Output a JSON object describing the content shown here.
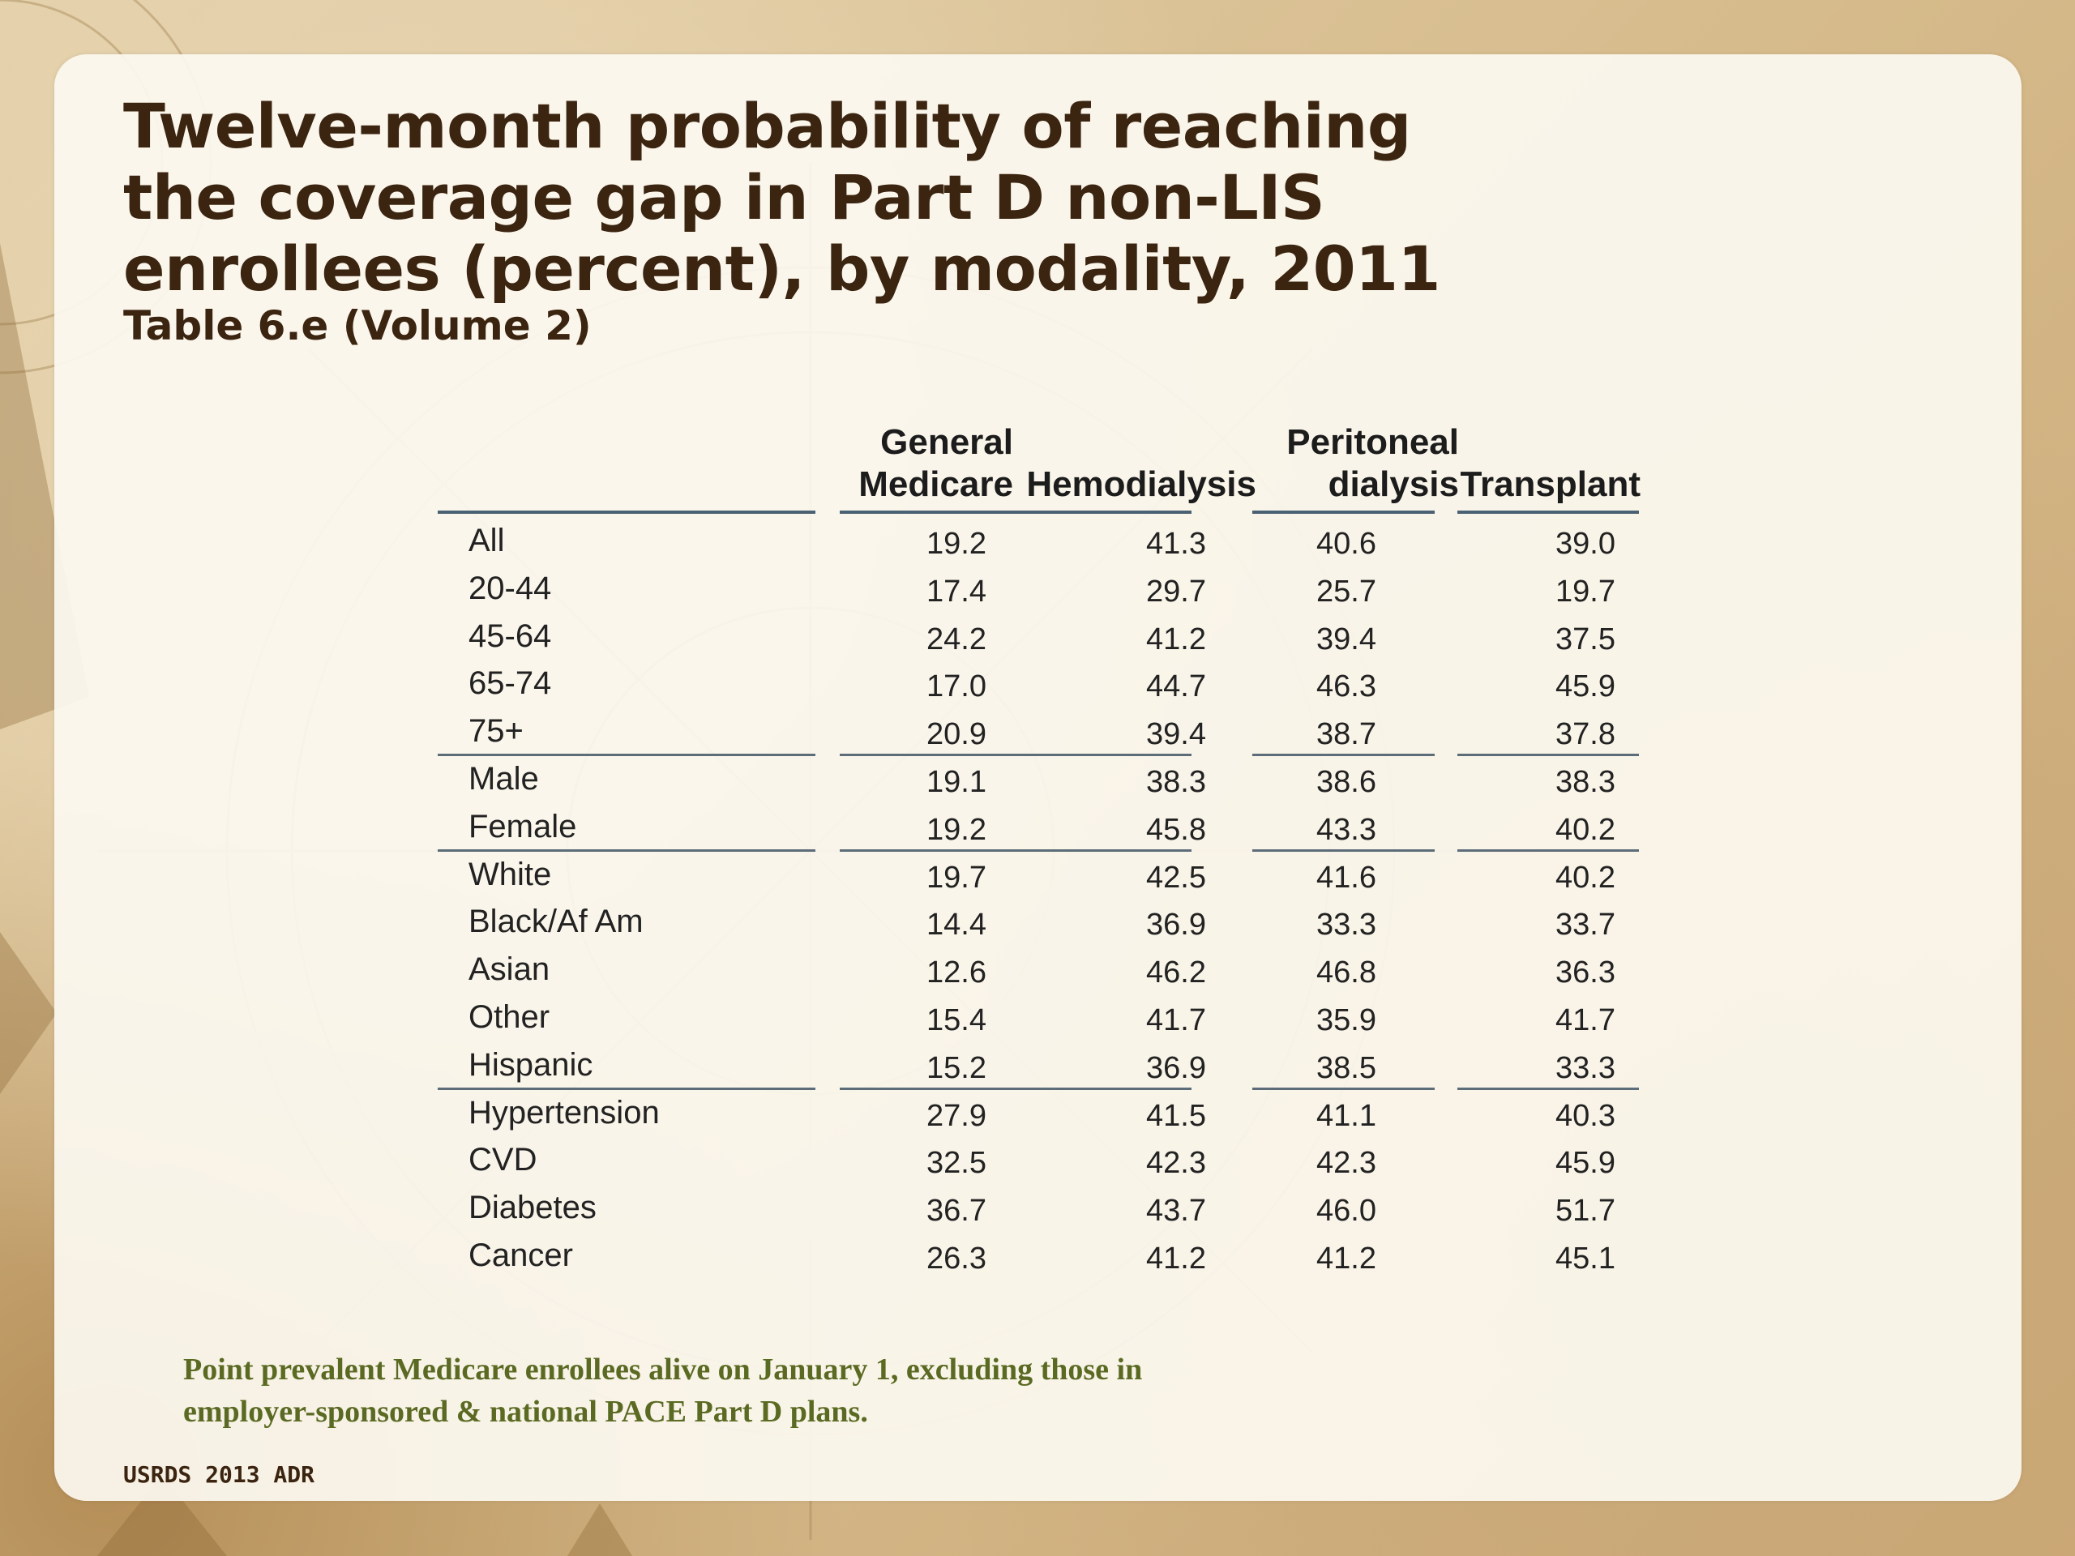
{
  "title": "Twelve-month probability of reaching the coverage gap in Part D non-LIS enrollees (percent), by modality, 2011",
  "subtitle": "Table 6.e (Volume 2)",
  "table": {
    "columns": [
      {
        "line1": "General",
        "line2": "Medicare"
      },
      {
        "line1": "",
        "line2": "Hemodialysis"
      },
      {
        "line1": "Peritoneal",
        "line2": "dialysis"
      },
      {
        "line1": "",
        "line2": "Transplant"
      }
    ],
    "rows": [
      {
        "label": "All",
        "values": [
          "19.2",
          "41.3",
          "40.6",
          "39.0"
        ]
      },
      {
        "label": "20-44",
        "values": [
          "17.4",
          "29.7",
          "25.7",
          "19.7"
        ]
      },
      {
        "label": "45-64",
        "values": [
          "24.2",
          "41.2",
          "39.4",
          "37.5"
        ]
      },
      {
        "label": "65-74",
        "values": [
          "17.0",
          "44.7",
          "46.3",
          "45.9"
        ]
      },
      {
        "label": "75+",
        "values": [
          "20.9",
          "39.4",
          "38.7",
          "37.8"
        ]
      },
      {
        "label": "Male",
        "values": [
          "19.1",
          "38.3",
          "38.6",
          "38.3"
        ]
      },
      {
        "label": "Female",
        "values": [
          "19.2",
          "45.8",
          "43.3",
          "40.2"
        ]
      },
      {
        "label": "White",
        "values": [
          "19.7",
          "42.5",
          "41.6",
          "40.2"
        ]
      },
      {
        "label": "Black/Af Am",
        "values": [
          "14.4",
          "36.9",
          "33.3",
          "33.7"
        ]
      },
      {
        "label": "Asian",
        "values": [
          "12.6",
          "46.2",
          "46.8",
          "36.3"
        ]
      },
      {
        "label": "Other",
        "values": [
          "15.4",
          "41.7",
          "35.9",
          "41.7"
        ]
      },
      {
        "label": "Hispanic",
        "values": [
          "15.2",
          "36.9",
          "38.5",
          "33.3"
        ]
      },
      {
        "label": "Hypertension",
        "values": [
          "27.9",
          "41.5",
          "41.1",
          "40.3"
        ]
      },
      {
        "label": "CVD",
        "values": [
          "32.5",
          "42.3",
          "42.3",
          "45.9"
        ]
      },
      {
        "label": "Diabetes",
        "values": [
          "36.7",
          "43.7",
          "46.0",
          "51.7"
        ]
      },
      {
        "label": "Cancer",
        "values": [
          "26.3",
          "41.2",
          "41.2",
          "45.1"
        ]
      }
    ]
  },
  "note": "Point prevalent Medicare enrollees alive on January 1, excluding those in employer-sponsored & national PACE Part D plans.",
  "source": "USRDS 2013 ADR",
  "colors": {
    "title": "#3b2410",
    "note": "#5a6a22",
    "rule": "#4a6173",
    "panel": "#fcf9f0"
  }
}
